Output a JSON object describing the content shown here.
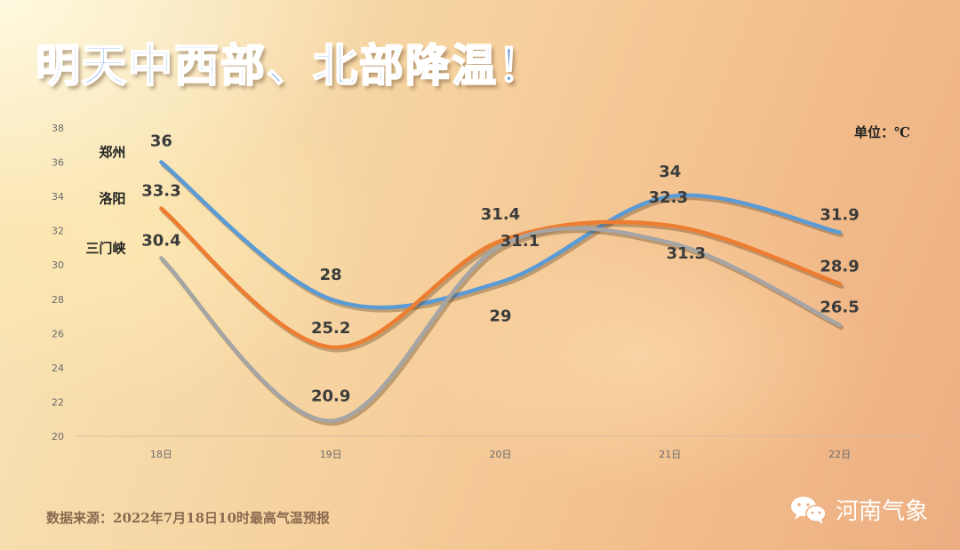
{
  "header": {
    "title": "明天中西部、北部降温！"
  },
  "unit_label": "单位：℃",
  "source_note": "数据来源：2022年7月18日10时最高气温预报",
  "brand": {
    "name": "河南气象",
    "icon": "wechat-icon"
  },
  "chart_data": {
    "type": "line",
    "title": "明天中西部、北部降温！",
    "xlabel": "",
    "ylabel": "",
    "categories": [
      "18日",
      "19日",
      "20日",
      "21日",
      "22日"
    ],
    "ylim": [
      20,
      38
    ],
    "yticks": [
      20,
      22,
      24,
      26,
      28,
      30,
      32,
      34,
      36,
      38
    ],
    "grid": false,
    "legend": "labels at left of series",
    "smooth": true,
    "series": [
      {
        "name": "郑州",
        "values": [
          36,
          28,
          29,
          34,
          31.9
        ],
        "labels": [
          "36",
          "28",
          "29",
          "34",
          "31.9"
        ],
        "color": "#5b9bd5"
      },
      {
        "name": "洛阳",
        "values": [
          33.3,
          25.2,
          31.4,
          32.3,
          28.9
        ],
        "labels": [
          "33.3",
          "25.2",
          "31.4",
          "32.3",
          "28.9"
        ],
        "color": "#ed7d31"
      },
      {
        "name": "三门峡",
        "values": [
          30.4,
          20.9,
          31.1,
          31.3,
          26.5
        ],
        "labels": [
          "30.4",
          "20.9",
          "31.1",
          "31.3",
          "26.5"
        ],
        "color": "#a5a5a5"
      }
    ]
  }
}
